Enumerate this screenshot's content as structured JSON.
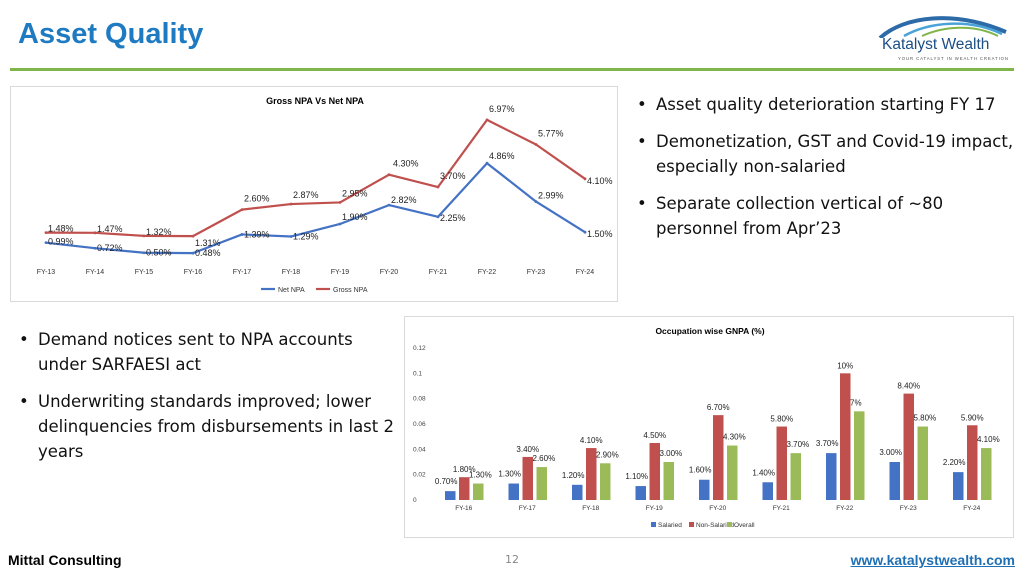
{
  "header": {
    "title": "Asset Quality"
  },
  "logo": {
    "name": "Katalyst Wealth",
    "tagline": "YOUR CATALYST IN WEALTH CREATION"
  },
  "colors": {
    "title": "#1f7bc1",
    "rule": "#7fb54a",
    "net_npa": "#4472c4",
    "gross_npa": "#c0504d",
    "salaried": "#4472c4",
    "non_salaried": "#c0504d",
    "overall": "#9bbb59"
  },
  "right_bullets": [
    "Asset quality deterioration starting FY 17",
    "Demonetization, GST and Covid-19 impact, especially non-salaried",
    "Separate collection vertical of ~80 personnel from Apr’23"
  ],
  "left_bullets": [
    "Demand notices sent to NPA accounts under SARFAESI act",
    "Underwriting standards improved; lower delinquencies from disbursements in last 2 years"
  ],
  "footer": {
    "left": "Mittal Consulting",
    "page": "12",
    "right": "www.katalystwealth.com"
  },
  "chart_data": [
    {
      "type": "line",
      "title": "Gross NPA Vs Net NPA",
      "categories": [
        "FY-13",
        "FY-14",
        "FY-15",
        "FY-16",
        "FY-17",
        "FY-18",
        "FY-19",
        "FY-20",
        "FY-21",
        "FY-22",
        "FY-23",
        "FY-24"
      ],
      "series": [
        {
          "name": "Net NPA",
          "values": [
            0.99,
            0.72,
            0.5,
            0.48,
            1.39,
            1.29,
            1.9,
            2.82,
            2.25,
            4.86,
            2.99,
            1.5
          ],
          "labels": [
            "0.99%",
            "0.72%",
            "0.50%",
            "0.48%",
            "1.39%",
            "1.29%",
            "1.90%",
            "2.82%",
            "2.25%",
            "4.86%",
            "2.99%",
            "1.50%"
          ]
        },
        {
          "name": "Gross NPA",
          "values": [
            1.48,
            1.47,
            1.32,
            1.31,
            2.6,
            2.87,
            2.95,
            4.3,
            3.7,
            6.97,
            5.77,
            4.1
          ],
          "labels": [
            "1.48%",
            "1.47%",
            "1.32%",
            "1.31%",
            "2.60%",
            "2.87%",
            "2.95%",
            "4.30%",
            "3.70%",
            "6.97%",
            "5.77%",
            "4.10%"
          ]
        }
      ],
      "ylim": [
        0,
        7.5
      ],
      "legend": "bottom",
      "grid": false
    },
    {
      "type": "bar",
      "title": "Occupation wise GNPA (%)",
      "categories": [
        "FY-16",
        "FY-17",
        "FY-18",
        "FY-19",
        "FY-20",
        "FY-21",
        "FY-22",
        "FY-23",
        "FY-24"
      ],
      "series": [
        {
          "name": "Salaried",
          "values": [
            0.007,
            0.013,
            0.012,
            0.011,
            0.016,
            0.014,
            0.037,
            0.03,
            0.022
          ],
          "labels": [
            "0.70%",
            "1.30%",
            "1.20%",
            "1.10%",
            "1.60%",
            "1.40%",
            "3.70%",
            "3.00%",
            "2.20%"
          ]
        },
        {
          "name": "Non-Salaried",
          "values": [
            0.018,
            0.034,
            0.041,
            0.045,
            0.067,
            0.058,
            0.1,
            0.084,
            0.059
          ],
          "labels": [
            "1.80%",
            "3.40%",
            "4.10%",
            "4.50%",
            "6.70%",
            "5.80%",
            "10%",
            "8.40%",
            "5.90%"
          ]
        },
        {
          "name": "Overall",
          "values": [
            0.013,
            0.026,
            0.029,
            0.03,
            0.043,
            0.037,
            0.07,
            0.058,
            0.041
          ],
          "labels": [
            "1.30%",
            "2.60%",
            "2.90%",
            "3.00%",
            "4.30%",
            "3.70%",
            "7%",
            "5.80%",
            "4.10%"
          ]
        }
      ],
      "y_ticks": [
        "0",
        "0.02",
        "0.04",
        "0.06",
        "0.08",
        "0.1",
        "0.12"
      ],
      "ylim": [
        0,
        0.12
      ],
      "legend": "bottom",
      "grid": false
    }
  ]
}
